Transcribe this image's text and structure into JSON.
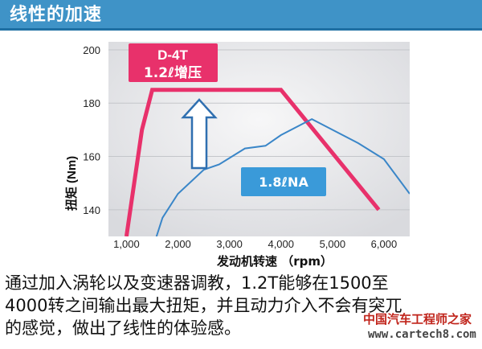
{
  "header": {
    "title": "线性的加速"
  },
  "caption": {
    "line1": "通过加入涡轮以及变速器调教，1.2T能够在1500至",
    "line2": "4000转之间输出最大扭矩，并且动力介入不会有突兀",
    "line3": "的感觉，做出了线性的体验感。"
  },
  "watermark": {
    "text": "中国汽车工程师之家",
    "url": "www.cartech8.com"
  },
  "colors": {
    "header": "#3f93c7",
    "turbo": "#e8316b",
    "na": "#3a86c8",
    "panel": "#e9eaec"
  },
  "chart_data": {
    "type": "line",
    "xlabel": "发动机转速 （rpm）",
    "ylabel": "扭矩 (Nm)",
    "xlim": [
      650,
      6500
    ],
    "ylim": [
      130,
      203
    ],
    "xticks": [
      1000,
      2000,
      3000,
      4000,
      5000,
      6000
    ],
    "xtick_labels": [
      "1,000",
      "2,000",
      "3,000",
      "4,000",
      "5,000",
      "6,000"
    ],
    "yticks": [
      140,
      160,
      180,
      200
    ],
    "ytick_labels": [
      "140",
      "160",
      "180",
      "200"
    ],
    "series": [
      {
        "name": "D-4T 1.2ℓ增压",
        "color": "#e8316b",
        "x": [
          1000,
          1300,
          1500,
          4000,
          5900
        ],
        "y": [
          130,
          170,
          185,
          185,
          140
        ]
      },
      {
        "name": "1.8ℓNA",
        "color": "#3a86c8",
        "x": [
          1500,
          1700,
          2000,
          2500,
          2800,
          3300,
          3700,
          4000,
          4600,
          4800,
          5500,
          6000,
          6500
        ],
        "y": [
          125,
          137,
          146,
          155,
          157,
          163,
          164,
          168,
          174,
          172,
          165,
          159,
          146
        ]
      }
    ],
    "annotations": {
      "turbo_label_line1": "D-4T",
      "turbo_label_line2": "1.2ℓ增压",
      "na_label": "1.8ℓNA"
    }
  }
}
